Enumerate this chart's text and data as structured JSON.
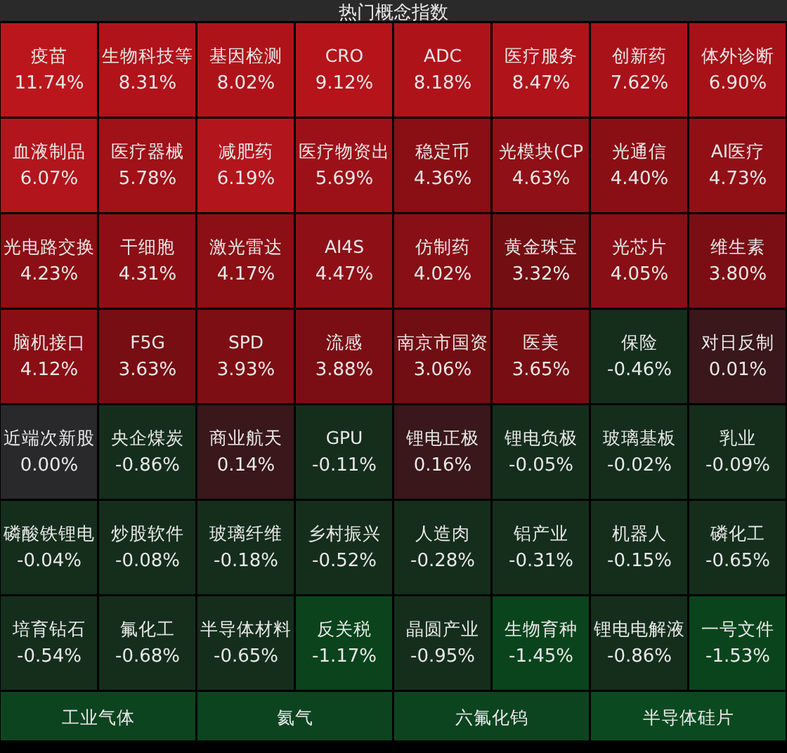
{
  "chart_data": {
    "type": "other",
    "title": "热门概念指数",
    "categories": [
      "疫苗",
      "生物科技等",
      "基因检测",
      "CRO",
      "ADC",
      "医疗服务",
      "创新药",
      "体外诊断",
      "血液制品",
      "医疗器械",
      "减肥药",
      "医疗物资出",
      "稳定币",
      "光模块(CP",
      "光通信",
      "AI医疗",
      "光电路交换",
      "干细胞",
      "激光雷达",
      "AI4S",
      "仿制药",
      "黄金珠宝",
      "光芯片",
      "维生素",
      "脑机接口",
      "F5G",
      "SPD",
      "流感",
      "南京市国资",
      "医美",
      "保险",
      "对日反制",
      "近端次新股",
      "央企煤炭",
      "商业航天",
      "GPU",
      "锂电正极",
      "锂电负极",
      "玻璃基板",
      "乳业",
      "磷酸铁锂电",
      "炒股软件",
      "玻璃纤维",
      "乡村振兴",
      "人造肉",
      "铝产业",
      "机器人",
      "磷化工",
      "培育钻石",
      "氟化工",
      "半导体材料",
      "反关税",
      "晶圆产业",
      "生物育种",
      "锂电电解液",
      "一号文件",
      "工业气体",
      "氦气",
      "六氟化钨",
      "半导体硅片"
    ],
    "values": [
      11.74,
      8.31,
      8.02,
      9.12,
      8.18,
      8.47,
      7.62,
      6.9,
      6.07,
      5.78,
      6.19,
      5.69,
      4.36,
      4.63,
      4.4,
      4.73,
      4.23,
      4.31,
      4.17,
      4.47,
      4.02,
      3.32,
      4.05,
      3.8,
      4.12,
      3.63,
      3.93,
      3.88,
      3.06,
      3.65,
      -0.46,
      0.01,
      0.0,
      -0.86,
      0.14,
      -0.11,
      0.16,
      -0.05,
      -0.02,
      -0.09,
      -0.04,
      -0.08,
      -0.18,
      -0.52,
      -0.28,
      -0.31,
      -0.15,
      -0.65,
      -0.54,
      -0.68,
      -0.65,
      -1.17,
      -0.95,
      -1.45,
      -0.86,
      -1.53,
      null,
      null,
      null,
      null
    ],
    "value_labels": [
      "11.74%",
      "8.31%",
      "8.02%",
      "9.12%",
      "8.18%",
      "8.47%",
      "7.62%",
      "6.90%",
      "6.07%",
      "5.78%",
      "6.19%",
      "5.69%",
      "4.36%",
      "4.63%",
      "4.40%",
      "4.73%",
      "4.23%",
      "4.31%",
      "4.17%",
      "4.47%",
      "4.02%",
      "3.32%",
      "4.05%",
      "3.80%",
      "4.12%",
      "3.63%",
      "3.93%",
      "3.88%",
      "3.06%",
      "3.65%",
      "-0.46%",
      "0.01%",
      "0.00%",
      "-0.86%",
      "0.14%",
      "-0.11%",
      "0.16%",
      "-0.05%",
      "-0.02%",
      "-0.09%",
      "-0.04%",
      "-0.08%",
      "-0.18%",
      "-0.52%",
      "-0.28%",
      "-0.31%",
      "-0.15%",
      "-0.65%",
      "-0.54%",
      "-0.68%",
      "-0.65%",
      "-1.17%",
      "-0.95%",
      "-1.45%",
      "-0.86%",
      "-1.53%",
      null,
      null,
      null,
      null
    ],
    "colors": [
      "#bc161d",
      "#b5141b",
      "#b5141b",
      "#b8141b",
      "#b5141b",
      "#b5141b",
      "#b0131a",
      "#ae1319",
      "#bc161d",
      "#a91219",
      "#bc161d",
      "#a41218",
      "#921016",
      "#981117",
      "#931016",
      "#9a1117",
      "#951016",
      "#961016",
      "#941016",
      "#971117",
      "#921016",
      "#7c0f14",
      "#921016",
      "#840f15",
      "#931016",
      "#7f0f14",
      "#860f15",
      "#840f15",
      "#7a0f14",
      "#800f14",
      "#17331f",
      "#3f1a1e",
      "#2e2e30",
      "#17331f",
      "#3f1a1e",
      "#17331f",
      "#3f1a1e",
      "#17331f",
      "#17331f",
      "#17331f",
      "#17331f",
      "#17331f",
      "#17331f",
      "#17331f",
      "#17331f",
      "#17331f",
      "#17331f",
      "#17331f",
      "#17331f",
      "#17331f",
      "#17331f",
      "#0b4a1f",
      "#17331f",
      "#0b4a1f",
      "#17331f",
      "#0b4a1f",
      "#0d4420",
      "#0d4420",
      "#0d4420",
      "#0b4a20"
    ]
  }
}
